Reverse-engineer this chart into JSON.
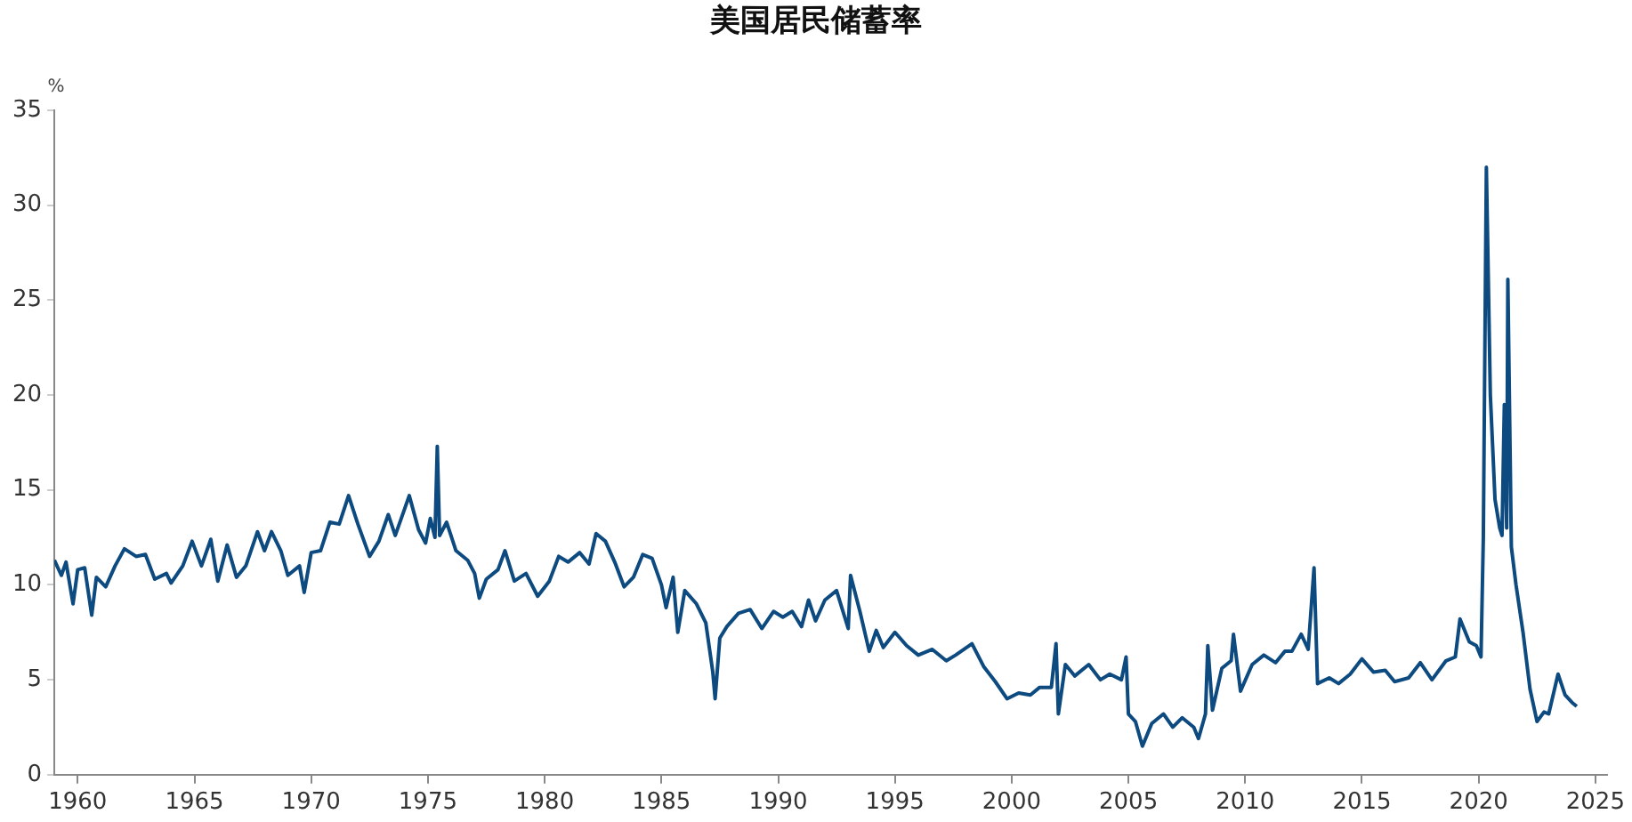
{
  "chart_data": {
    "type": "line",
    "title": "美国居民储蓄率",
    "ylabel": "%",
    "x": [
      1959.0,
      1959.3,
      1959.5,
      1959.8,
      1960.0,
      1960.3,
      1960.6,
      1960.8,
      1961.2,
      1961.6,
      1962.0,
      1962.5,
      1962.9,
      1963.3,
      1963.8,
      1964.0,
      1964.5,
      1964.9,
      1965.3,
      1965.7,
      1966.0,
      1966.4,
      1966.8,
      1967.2,
      1967.7,
      1968.0,
      1968.3,
      1968.7,
      1969.0,
      1969.5,
      1969.7,
      1970.0,
      1970.4,
      1970.8,
      1971.2,
      1971.6,
      1972.0,
      1972.5,
      1972.9,
      1973.3,
      1973.6,
      1974.0,
      1974.2,
      1974.6,
      1974.9,
      1975.1,
      1975.3,
      1975.4,
      1975.5,
      1975.8,
      1976.2,
      1976.7,
      1977.0,
      1977.2,
      1977.5,
      1978.0,
      1978.3,
      1978.7,
      1979.2,
      1979.7,
      1980.2,
      1980.6,
      1981.0,
      1981.5,
      1981.9,
      1982.2,
      1982.6,
      1983.0,
      1983.4,
      1983.8,
      1984.2,
      1984.6,
      1985.0,
      1985.2,
      1985.5,
      1985.7,
      1986.0,
      1986.5,
      1986.9,
      1987.2,
      1987.3,
      1987.5,
      1987.8,
      1988.3,
      1988.8,
      1989.3,
      1989.8,
      1990.2,
      1990.6,
      1991.0,
      1991.3,
      1991.6,
      1992.0,
      1992.5,
      1993.0,
      1993.1,
      1993.5,
      1993.9,
      1994.2,
      1994.5,
      1995.0,
      1995.5,
      1996.0,
      1996.6,
      1997.2,
      1997.6,
      1998.3,
      1998.8,
      1999.3,
      1999.8,
      2000.3,
      2000.8,
      2001.2,
      2001.7,
      2001.9,
      2002.0,
      2002.3,
      2002.7,
      2003.3,
      2003.8,
      2004.2,
      2004.7,
      2004.9,
      2005.0,
      2005.3,
      2005.6,
      2006.0,
      2006.5,
      2006.9,
      2007.3,
      2007.8,
      2008.0,
      2008.3,
      2008.4,
      2008.6,
      2009.0,
      2009.4,
      2009.5,
      2009.8,
      2010.3,
      2010.8,
      2011.3,
      2011.7,
      2012.0,
      2012.4,
      2012.7,
      2012.95,
      2013.1,
      2013.6,
      2014.0,
      2014.5,
      2015.0,
      2015.5,
      2016.0,
      2016.4,
      2017.0,
      2017.5,
      2018.0,
      2018.6,
      2019.0,
      2019.2,
      2019.6,
      2019.9,
      2020.1,
      2020.2,
      2020.33,
      2020.5,
      2020.7,
      2020.9,
      2021.0,
      2021.1,
      2021.2,
      2021.25,
      2021.4,
      2021.6,
      2021.9,
      2022.2,
      2022.5,
      2022.8,
      2023.0,
      2023.4,
      2023.7,
      2024.0,
      2024.2
    ],
    "series": [
      {
        "color": "#0d4a80",
        "values": [
          11.3,
          10.5,
          11.2,
          9.0,
          10.8,
          10.9,
          8.4,
          10.4,
          9.9,
          11.0,
          11.9,
          11.5,
          11.6,
          10.3,
          10.6,
          10.1,
          11.0,
          12.3,
          11.0,
          12.4,
          10.2,
          12.1,
          10.4,
          11.0,
          12.8,
          11.8,
          12.8,
          11.8,
          10.5,
          11.0,
          9.6,
          11.7,
          11.8,
          13.3,
          13.2,
          14.7,
          13.2,
          11.5,
          12.3,
          13.7,
          12.6,
          14.0,
          14.7,
          12.9,
          12.2,
          13.5,
          12.5,
          17.3,
          12.6,
          13.3,
          11.8,
          11.3,
          10.6,
          9.3,
          10.3,
          10.8,
          11.8,
          10.2,
          10.6,
          9.4,
          10.2,
          11.5,
          11.2,
          11.7,
          11.1,
          12.7,
          12.3,
          11.2,
          9.9,
          10.4,
          11.6,
          11.4,
          10.0,
          8.8,
          10.4,
          7.5,
          9.7,
          9.0,
          8.0,
          5.4,
          4.0,
          7.2,
          7.8,
          8.5,
          8.7,
          7.7,
          8.6,
          8.3,
          8.6,
          7.8,
          9.2,
          8.1,
          9.2,
          9.7,
          7.7,
          10.5,
          8.6,
          6.5,
          7.6,
          6.7,
          7.5,
          6.8,
          6.3,
          6.6,
          6.0,
          6.3,
          6.9,
          5.7,
          4.9,
          4.0,
          4.3,
          4.2,
          4.6,
          4.6,
          6.9,
          3.2,
          5.8,
          5.2,
          5.8,
          5.0,
          5.3,
          5.0,
          6.2,
          3.2,
          2.8,
          1.5,
          2.7,
          3.2,
          2.5,
          3.0,
          2.5,
          1.9,
          3.2,
          6.8,
          3.4,
          5.6,
          6.0,
          7.4,
          4.4,
          5.8,
          6.3,
          5.9,
          6.5,
          6.5,
          7.4,
          6.6,
          10.9,
          4.8,
          5.1,
          4.8,
          5.3,
          6.1,
          5.4,
          5.5,
          4.9,
          5.1,
          5.9,
          5.0,
          6.0,
          6.2,
          8.2,
          7.0,
          6.8,
          6.2,
          12.5,
          32.0,
          20.0,
          14.5,
          13.0,
          12.6,
          19.5,
          13.0,
          26.1,
          12.0,
          10.0,
          7.5,
          4.5,
          2.8,
          3.3,
          3.2,
          5.3,
          4.2,
          3.8,
          3.6
        ]
      }
    ],
    "xlim": [
      1959,
      2025.5
    ],
    "xticks": [
      1960,
      1965,
      1970,
      1975,
      1980,
      1985,
      1990,
      1995,
      2000,
      2005,
      2010,
      2015,
      2020,
      2025
    ],
    "ylim": [
      0,
      35
    ],
    "yticks": [
      0,
      5,
      10,
      15,
      20,
      25,
      30,
      35
    ],
    "grid": false,
    "legend": false,
    "marker": "none",
    "line_style": "solid"
  }
}
